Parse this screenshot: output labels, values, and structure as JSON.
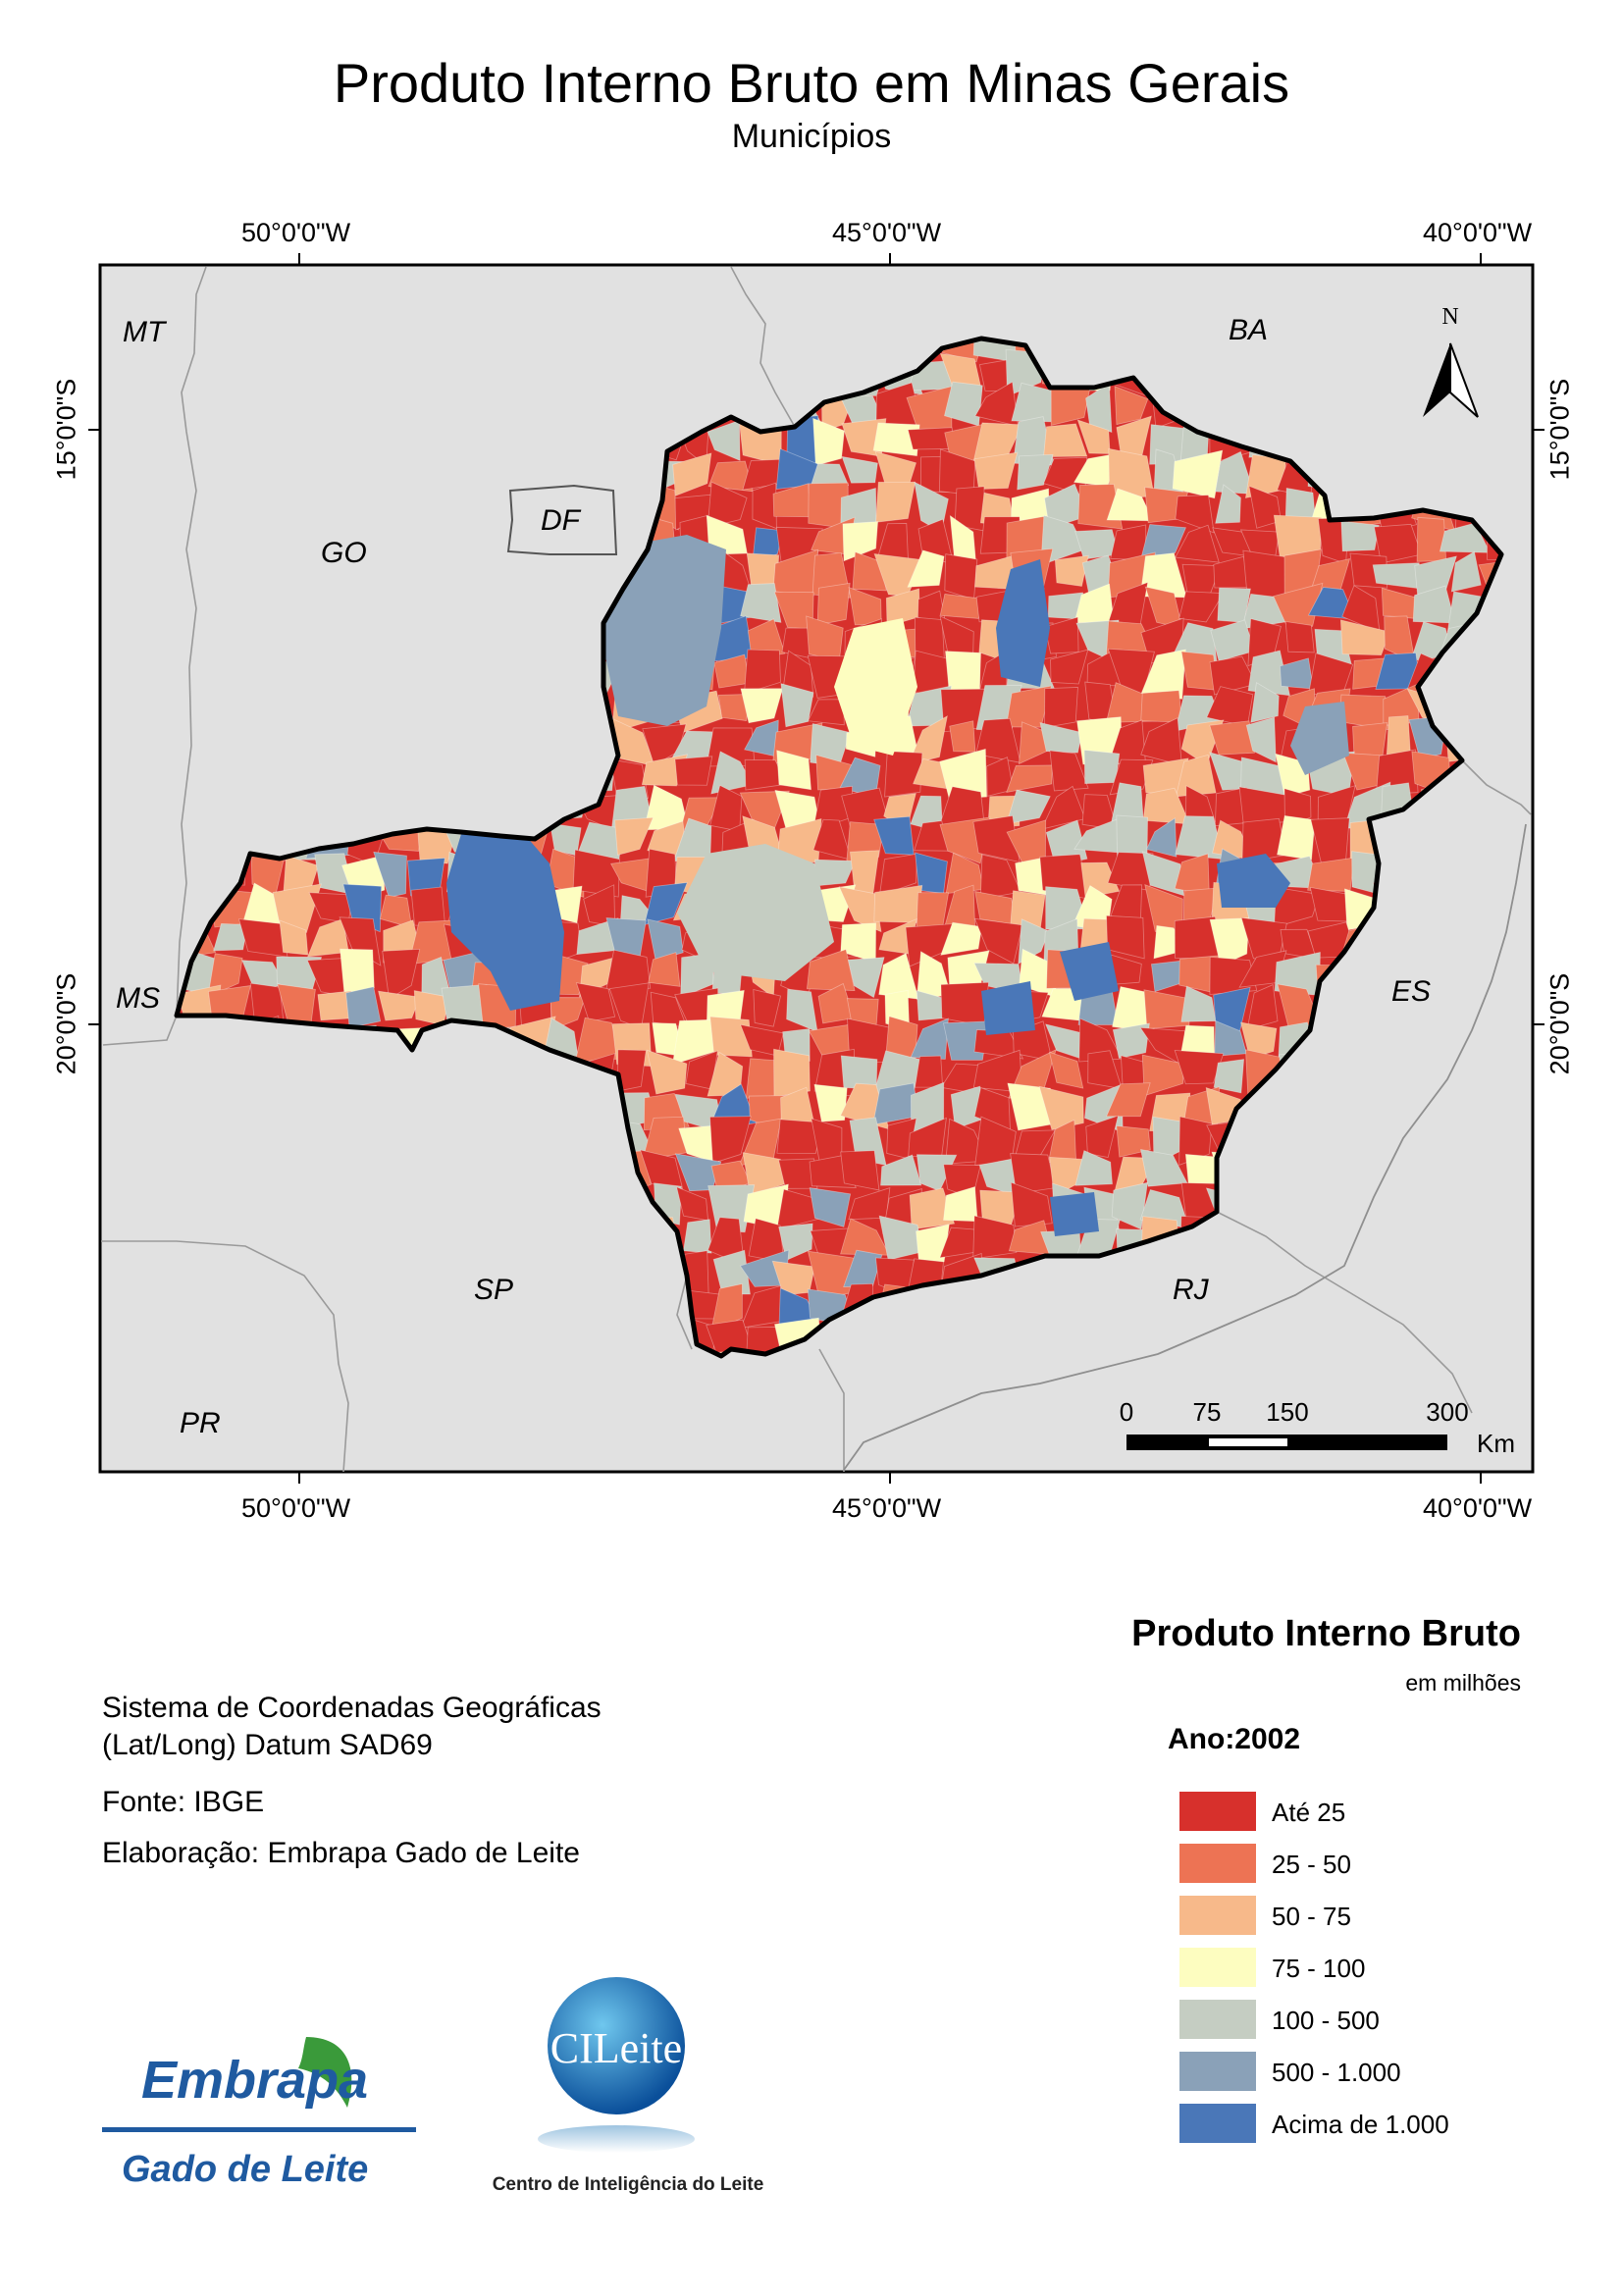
{
  "title": "Produto Interno Bruto em Minas Gerais",
  "subtitle": "Municípios",
  "graticule": {
    "lon_labels": [
      "50°0'0\"W",
      "45°0'0\"W",
      "40°0'0\"W"
    ],
    "lat_labels": [
      "15°0'0\"S",
      "20°0'0\"S"
    ]
  },
  "states": [
    {
      "abbr": "MT"
    },
    {
      "abbr": "BA"
    },
    {
      "abbr": "GO"
    },
    {
      "abbr": "DF"
    },
    {
      "abbr": "MS"
    },
    {
      "abbr": "ES"
    },
    {
      "abbr": "SP"
    },
    {
      "abbr": "RJ"
    },
    {
      "abbr": "PR"
    }
  ],
  "north_arrow": {
    "label": "N"
  },
  "scale_bar": {
    "ticks": [
      "0",
      "75",
      "150",
      "300"
    ],
    "unit": "Km"
  },
  "info": {
    "coord_system_line1": "Sistema de Coordenadas Geográficas",
    "coord_system_line2": "(Lat/Long) Datum SAD69",
    "source": "Fonte: IBGE",
    "elaboration": "Elaboração: Embrapa Gado de Leite"
  },
  "legend": {
    "title": "Produto Interno Bruto",
    "units": "em milhões",
    "year": "Ano:2002",
    "classes": [
      {
        "label": "Até 25",
        "color": "#d7302c"
      },
      {
        "label": "25 - 50",
        "color": "#ed7354"
      },
      {
        "label": "50 - 75",
        "color": "#f7b98a"
      },
      {
        "label": "75 - 100",
        "color": "#fdfdc0"
      },
      {
        "label": "100 - 500",
        "color": "#c5cdc2"
      },
      {
        "label": "500 - 1.000",
        "color": "#8aa1b8"
      },
      {
        "label": "Acima de 1.000",
        "color": "#4a77b8"
      }
    ]
  },
  "logos": {
    "embrapa_word": "Embrapa",
    "embrapa_sub": "Gado de Leite",
    "cileite_word": "CILeite",
    "cileite_sub": "Centro de Inteligência do Leite"
  }
}
